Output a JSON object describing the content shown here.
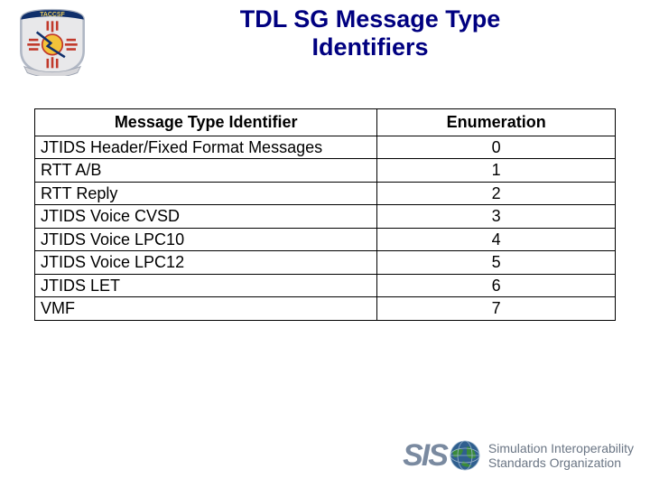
{
  "title": "TDL SG Message Type\nIdentifiers",
  "title_color": "#000080",
  "title_fontsize": 27,
  "title_fontweight": "bold",
  "table": {
    "columns": [
      "Message Type Identifier",
      "Enumeration"
    ],
    "column_align": [
      "left",
      "center"
    ],
    "header_align": [
      "center",
      "center"
    ],
    "col_widths_pct": [
      59,
      41
    ],
    "header_fontweight": "bold",
    "cell_fontsize": 18,
    "border_color": "#000000",
    "rows": [
      [
        "JTIDS Header/Fixed Format Messages",
        "0"
      ],
      [
        "RTT A/B",
        "1"
      ],
      [
        "RTT Reply",
        "2"
      ],
      [
        "JTIDS Voice CVSD",
        "3"
      ],
      [
        "JTIDS Voice LPC10",
        "4"
      ],
      [
        "JTIDS Voice LPC12",
        "5"
      ],
      [
        "JTIDS LET",
        "6"
      ],
      [
        "VMF",
        "7"
      ]
    ]
  },
  "emblem": {
    "banner_text": "TACCSF",
    "banner_color": "#0f2f6b",
    "sun_color": "#f2c33a",
    "ray_color": "#c1392b",
    "bolt_color": "#0f2f6b",
    "ring_color": "#b0b7c4",
    "background": "#e8e8ea"
  },
  "footer": {
    "siso_letters": "SIS",
    "letters_color": "#7a8aa0",
    "globe_colors": {
      "ocean": "#2f5f8f",
      "land": "#3a8a3a",
      "grid": "#9ab4cc"
    },
    "org_line1": "Simulation Interoperability",
    "org_line2": "Standards Organization",
    "text_color": "#6a7584",
    "text_fontsize": 14
  }
}
